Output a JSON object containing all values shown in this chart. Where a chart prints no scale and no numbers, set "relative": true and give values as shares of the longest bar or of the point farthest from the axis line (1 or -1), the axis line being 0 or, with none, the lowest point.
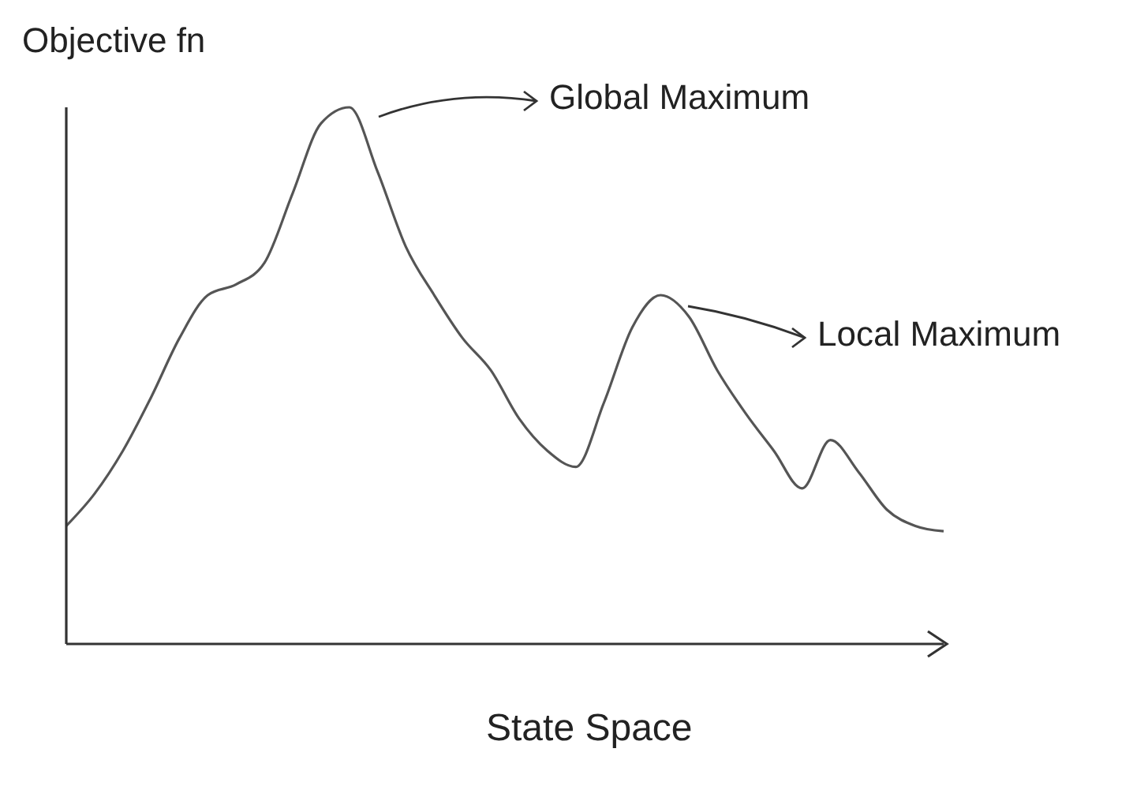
{
  "chart_data": {
    "type": "line",
    "relative": true,
    "ylabel": "Objective fn",
    "xlabel": "State Space",
    "annotations": [
      "Global Maximum",
      "Local Maximum"
    ],
    "categories": [
      null,
      null,
      null,
      null,
      null,
      null,
      null,
      null,
      null,
      null,
      null,
      null,
      null,
      null,
      null,
      null,
      null,
      null,
      null,
      null,
      null,
      null,
      null,
      null,
      null,
      null,
      null,
      null,
      null,
      null,
      null,
      null
    ],
    "series": [
      {
        "color": "#555555",
        "values": [
          0.22,
          0.28,
          0.36,
          0.46,
          0.57,
          0.65,
          0.67,
          0.71,
          0.84,
          0.97,
          1,
          0.88,
          0.74,
          0.65,
          0.57,
          0.51,
          0.42,
          0.36,
          0.33,
          0.45,
          0.59,
          0.65,
          0.61,
          0.51,
          0.43,
          0.36,
          0.29,
          0.38,
          0.32,
          0.25,
          0.22,
          0.21
        ]
      }
    ],
    "grid": false,
    "legend": false,
    "marker": "none",
    "line_style": "solid"
  }
}
